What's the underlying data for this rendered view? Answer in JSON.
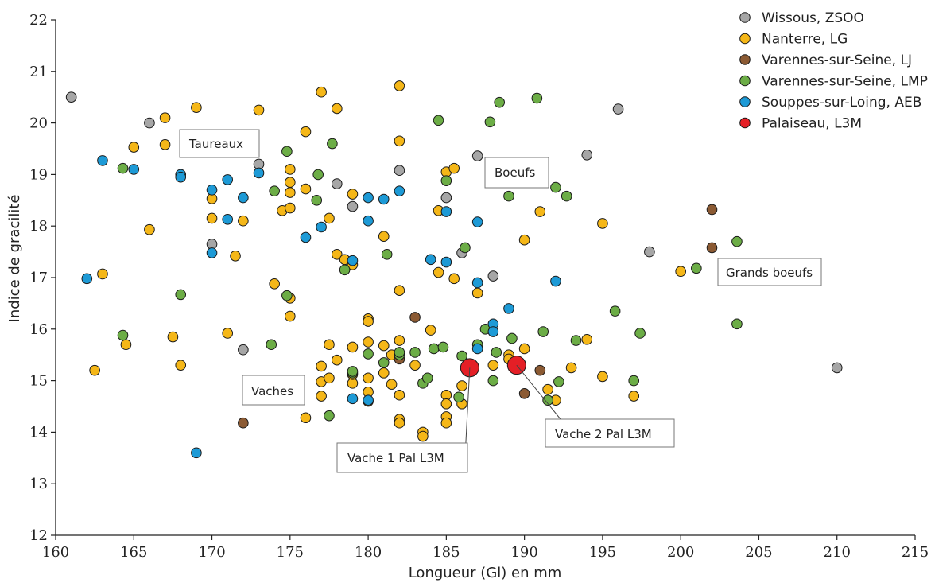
{
  "chart_data": {
    "type": "scatter",
    "title": "",
    "xlabel": "Longueur (Gl) en mm",
    "ylabel": "Indice de gracilité",
    "xlim": [
      160,
      215
    ],
    "ylim": [
      12,
      22
    ],
    "xticks": [
      "160",
      "165",
      "170",
      "175",
      "180",
      "185",
      "190",
      "195",
      "200",
      "205",
      "210",
      "215"
    ],
    "yticks": [
      "12",
      "13",
      "14",
      "15",
      "16",
      "17",
      "18",
      "19",
      "20",
      "21",
      "22"
    ],
    "grid": false,
    "legend_position": "top-right",
    "series": [
      {
        "name": "Wissous, ZSOO",
        "color": "#a6a6a6",
        "points": [
          [
            161,
            20.5
          ],
          [
            166,
            20
          ],
          [
            170,
            17.65
          ],
          [
            172,
            15.6
          ],
          [
            173,
            19.2
          ],
          [
            178,
            18.82
          ],
          [
            179,
            18.38
          ],
          [
            182,
            19.08
          ],
          [
            185,
            18.55
          ],
          [
            186,
            17.48
          ],
          [
            187,
            19.36
          ],
          [
            188,
            17.03
          ],
          [
            194,
            19.38
          ],
          [
            196,
            20.27
          ],
          [
            198,
            17.5
          ],
          [
            210,
            15.25
          ]
        ]
      },
      {
        "name": "Nanterre, LG",
        "color": "#f5b718",
        "points": [
          [
            162.5,
            15.2
          ],
          [
            163,
            17.07
          ],
          [
            165,
            19.53
          ],
          [
            164.5,
            15.7
          ],
          [
            166,
            17.93
          ],
          [
            167,
            20.1
          ],
          [
            167,
            19.58
          ],
          [
            167.5,
            15.85
          ],
          [
            168,
            15.3
          ],
          [
            169,
            20.3
          ],
          [
            170,
            18.53
          ],
          [
            170,
            18.15
          ],
          [
            171,
            15.92
          ],
          [
            171.5,
            17.42
          ],
          [
            172,
            18.1
          ],
          [
            173,
            20.25
          ],
          [
            174,
            16.88
          ],
          [
            174.5,
            18.3
          ],
          [
            175,
            19.1
          ],
          [
            175,
            18.85
          ],
          [
            175,
            18.65
          ],
          [
            175,
            18.35
          ],
          [
            175,
            16.6
          ],
          [
            175,
            16.25
          ],
          [
            176,
            19.83
          ],
          [
            176,
            18.72
          ],
          [
            176,
            14.28
          ],
          [
            177,
            20.6
          ],
          [
            177,
            15.28
          ],
          [
            177,
            14.7
          ],
          [
            177,
            14.98
          ],
          [
            177.5,
            18.15
          ],
          [
            177.5,
            15.7
          ],
          [
            177.5,
            15.05
          ],
          [
            178,
            20.28
          ],
          [
            178,
            17.45
          ],
          [
            178,
            15.4
          ],
          [
            178.5,
            17.35
          ],
          [
            179,
            18.62
          ],
          [
            179,
            17.25
          ],
          [
            179,
            15.65
          ],
          [
            179,
            14.95
          ],
          [
            179,
            15.12
          ],
          [
            180,
            16.2
          ],
          [
            180,
            16.15
          ],
          [
            180,
            15.75
          ],
          [
            180,
            15.05
          ],
          [
            180,
            14.78
          ],
          [
            180,
            14.6
          ],
          [
            181,
            17.8
          ],
          [
            181,
            15.68
          ],
          [
            181,
            15.15
          ],
          [
            181.5,
            15.5
          ],
          [
            181.5,
            14.93
          ],
          [
            182,
            20.72
          ],
          [
            182,
            19.65
          ],
          [
            182,
            16.75
          ],
          [
            182,
            15.78
          ],
          [
            182,
            15.52
          ],
          [
            182,
            14.72
          ],
          [
            182,
            14.25
          ],
          [
            182,
            14.18
          ],
          [
            183,
            15.3
          ],
          [
            183.5,
            14
          ],
          [
            183.5,
            13.92
          ],
          [
            184,
            15.98
          ],
          [
            184.5,
            18.3
          ],
          [
            184.5,
            17.1
          ],
          [
            185,
            19.05
          ],
          [
            185,
            14.72
          ],
          [
            185,
            14.55
          ],
          [
            185,
            14.3
          ],
          [
            185,
            14.18
          ],
          [
            185.5,
            19.12
          ],
          [
            185.5,
            16.98
          ],
          [
            186,
            14.9
          ],
          [
            186,
            14.55
          ],
          [
            187,
            16.7
          ],
          [
            188,
            15.3
          ],
          [
            189,
            15.5
          ],
          [
            189,
            15.42
          ],
          [
            190,
            17.73
          ],
          [
            190,
            15.62
          ],
          [
            191,
            18.28
          ],
          [
            191.5,
            14.83
          ],
          [
            192,
            14.62
          ],
          [
            193,
            15.25
          ],
          [
            194,
            15.8
          ],
          [
            195,
            18.05
          ],
          [
            195,
            15.08
          ],
          [
            197,
            14.7
          ],
          [
            200,
            17.12
          ]
        ]
      },
      {
        "name": "Varennes-sur-Seine, LJ",
        "color": "#8b5a33",
        "points": [
          [
            172,
            14.18
          ],
          [
            182,
            15.42
          ],
          [
            183,
            16.23
          ],
          [
            190,
            14.75
          ],
          [
            191,
            15.2
          ],
          [
            202,
            18.32
          ],
          [
            202,
            17.58
          ]
        ]
      },
      {
        "name": "Varennes-sur-Seine, LMP",
        "color": "#6cad46",
        "points": [
          [
            164.3,
            15.88
          ],
          [
            164.3,
            19.12
          ],
          [
            168,
            16.67
          ],
          [
            174,
            18.68
          ],
          [
            173.8,
            15.7
          ],
          [
            174.8,
            16.65
          ],
          [
            174.8,
            19.45
          ],
          [
            176.7,
            18.5
          ],
          [
            176.8,
            19.0
          ],
          [
            177.5,
            14.32
          ],
          [
            177.7,
            19.6
          ],
          [
            178.5,
            17.15
          ],
          [
            179,
            15.15
          ],
          [
            179,
            15.18
          ],
          [
            180,
            15.52
          ],
          [
            181,
            15.35
          ],
          [
            181.2,
            17.45
          ],
          [
            182,
            15.5
          ],
          [
            182,
            15.55
          ],
          [
            183,
            15.55
          ],
          [
            183.5,
            14.95
          ],
          [
            183.8,
            15.05
          ],
          [
            184.2,
            15.62
          ],
          [
            184.5,
            20.05
          ],
          [
            184.8,
            15.65
          ],
          [
            185,
            18.88
          ],
          [
            185.8,
            14.68
          ],
          [
            186,
            15.48
          ],
          [
            186.2,
            17.58
          ],
          [
            187,
            15.7
          ],
          [
            187.5,
            16.0
          ],
          [
            187.8,
            20.02
          ],
          [
            188,
            15.0
          ],
          [
            188.2,
            15.55
          ],
          [
            188.4,
            20.4
          ],
          [
            189,
            18.58
          ],
          [
            189.2,
            15.82
          ],
          [
            190.8,
            20.48
          ],
          [
            191.2,
            15.95
          ],
          [
            191.5,
            14.62
          ],
          [
            192,
            18.75
          ],
          [
            192.2,
            14.98
          ],
          [
            192.7,
            18.58
          ],
          [
            193.3,
            15.78
          ],
          [
            195.8,
            16.35
          ],
          [
            197,
            15.0
          ],
          [
            197.4,
            15.92
          ],
          [
            201,
            17.18
          ],
          [
            203.6,
            17.7
          ],
          [
            203.6,
            16.1
          ]
        ]
      },
      {
        "name": "Souppes-sur-Loing, AEB",
        "color": "#1d9ad6",
        "points": [
          [
            162,
            16.98
          ],
          [
            163,
            19.27
          ],
          [
            165,
            19.1
          ],
          [
            168,
            19.0
          ],
          [
            168,
            18.95
          ],
          [
            169,
            13.6
          ],
          [
            170,
            18.7
          ],
          [
            170,
            17.48
          ],
          [
            171,
            18.9
          ],
          [
            171,
            18.13
          ],
          [
            172,
            18.55
          ],
          [
            173,
            19.03
          ],
          [
            176,
            17.78
          ],
          [
            177,
            17.98
          ],
          [
            179,
            17.33
          ],
          [
            179,
            14.65
          ],
          [
            180,
            18.55
          ],
          [
            180,
            18.1
          ],
          [
            180,
            14.62
          ],
          [
            181,
            18.52
          ],
          [
            182,
            18.68
          ],
          [
            184,
            17.35
          ],
          [
            185,
            18.28
          ],
          [
            185,
            17.3
          ],
          [
            187,
            18.08
          ],
          [
            187,
            16.9
          ],
          [
            187,
            15.62
          ],
          [
            188,
            16.1
          ],
          [
            188,
            15.95
          ],
          [
            189,
            16.4
          ],
          [
            192,
            16.93
          ]
        ]
      },
      {
        "name": "Palaiseau, L3M",
        "color": "#e41f26",
        "points": [
          [
            186.5,
            15.25
          ],
          [
            189.5,
            15.3
          ]
        ]
      }
    ],
    "annotations": [
      {
        "text": "Taureaux"
      },
      {
        "text": "Boeufs"
      },
      {
        "text": "Grands boeufs"
      },
      {
        "text": "Vaches"
      },
      {
        "text": "Vache 1 Pal L3M"
      },
      {
        "text": "Vache 2 Pal L3M"
      }
    ]
  }
}
